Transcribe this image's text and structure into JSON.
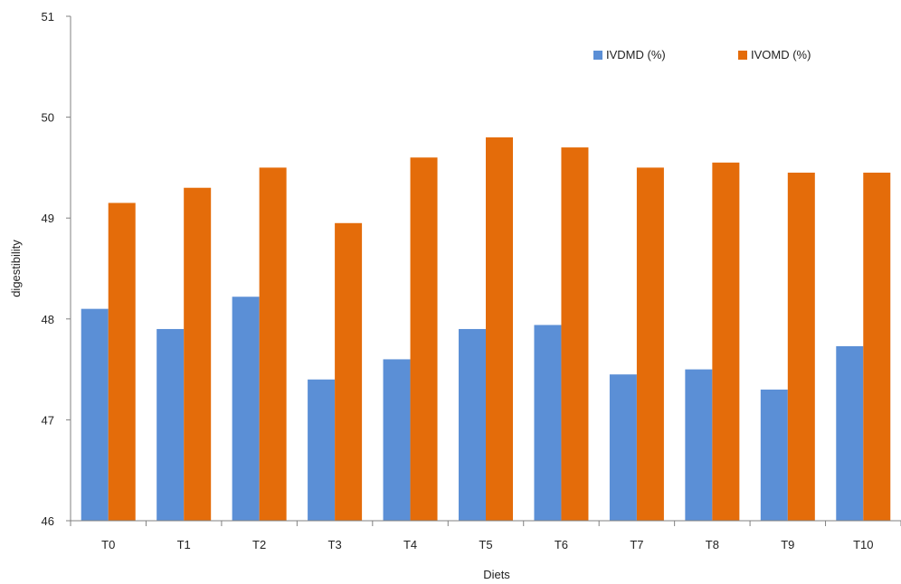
{
  "chart_data": {
    "type": "bar",
    "title": "",
    "xlabel": "Diets",
    "ylabel": "digestibility",
    "categories": [
      "T0",
      "T1",
      "T2",
      "T3",
      "T4",
      "T5",
      "T6",
      "T7",
      "T8",
      "T9",
      "T10"
    ],
    "series": [
      {
        "name": "IVDMD (%)",
        "color": "#5b8fd6",
        "values": [
          48.1,
          47.9,
          48.22,
          47.4,
          47.6,
          47.9,
          47.94,
          47.45,
          47.5,
          47.3,
          47.73
        ]
      },
      {
        "name": "IVOMD (%)",
        "color": "#e46c0a",
        "values": [
          49.15,
          49.3,
          49.5,
          48.95,
          49.6,
          49.8,
          49.7,
          49.5,
          49.55,
          49.45,
          49.45
        ]
      }
    ],
    "ylim": [
      46,
      51
    ],
    "yticks": [
      46,
      47,
      48,
      49,
      50,
      51
    ],
    "grid": false,
    "legend_position": "top-right"
  }
}
